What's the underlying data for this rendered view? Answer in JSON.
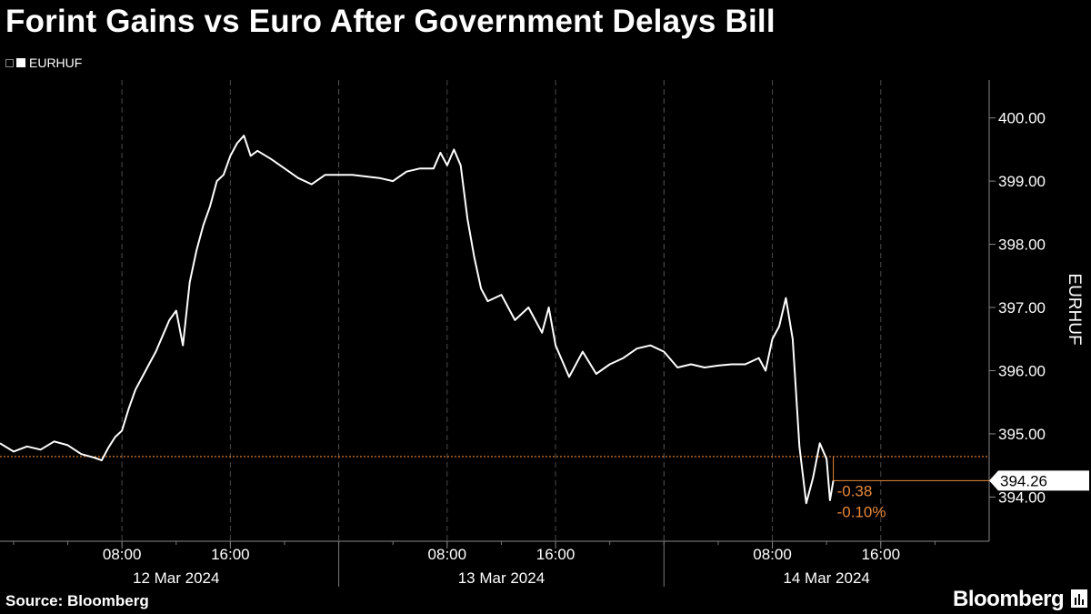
{
  "title": "Forint Gains vs Euro After Government Delays Bill",
  "legend": {
    "label": "EURHUF"
  },
  "source": "Source: Bloomberg",
  "brand": "Bloomberg",
  "colors": {
    "background": "#000000",
    "line": "#ffffff",
    "reference": "#e8893a",
    "grid": "#555555"
  },
  "chart_data": {
    "type": "line",
    "series": [
      {
        "name": "EURHUF",
        "points": [
          [
            "2024-03-11 23:00",
            394.85
          ],
          [
            "2024-03-12 00:00",
            394.72
          ],
          [
            "2024-03-12 01:00",
            394.8
          ],
          [
            "2024-03-12 02:00",
            394.75
          ],
          [
            "2024-03-12 03:00",
            394.88
          ],
          [
            "2024-03-12 04:00",
            394.82
          ],
          [
            "2024-03-12 05:00",
            394.68
          ],
          [
            "2024-03-12 06:00",
            394.62
          ],
          [
            "2024-03-12 06:30",
            394.58
          ],
          [
            "2024-03-12 07:00",
            394.78
          ],
          [
            "2024-03-12 07:30",
            394.95
          ],
          [
            "2024-03-12 08:00",
            395.05
          ],
          [
            "2024-03-12 08:30",
            395.4
          ],
          [
            "2024-03-12 09:00",
            395.7
          ],
          [
            "2024-03-12 09:30",
            395.9
          ],
          [
            "2024-03-12 10:00",
            396.1
          ],
          [
            "2024-03-12 10:30",
            396.3
          ],
          [
            "2024-03-12 11:00",
            396.55
          ],
          [
            "2024-03-12 11:30",
            396.8
          ],
          [
            "2024-03-12 12:00",
            396.95
          ],
          [
            "2024-03-12 12:30",
            396.4
          ],
          [
            "2024-03-12 13:00",
            397.4
          ],
          [
            "2024-03-12 13:30",
            397.9
          ],
          [
            "2024-03-12 14:00",
            398.3
          ],
          [
            "2024-03-12 14:30",
            398.6
          ],
          [
            "2024-03-12 15:00",
            399.0
          ],
          [
            "2024-03-12 15:30",
            399.1
          ],
          [
            "2024-03-12 16:00",
            399.4
          ],
          [
            "2024-03-12 16:30",
            399.6
          ],
          [
            "2024-03-12 17:00",
            399.72
          ],
          [
            "2024-03-12 17:30",
            399.4
          ],
          [
            "2024-03-12 18:00",
            399.48
          ],
          [
            "2024-03-12 19:00",
            399.35
          ],
          [
            "2024-03-12 20:00",
            399.2
          ],
          [
            "2024-03-12 21:00",
            399.05
          ],
          [
            "2024-03-12 22:00",
            398.95
          ],
          [
            "2024-03-12 23:00",
            399.1
          ],
          [
            "2024-03-13 01:00",
            399.1
          ],
          [
            "2024-03-13 03:00",
            399.05
          ],
          [
            "2024-03-13 04:00",
            399.0
          ],
          [
            "2024-03-13 05:00",
            399.15
          ],
          [
            "2024-03-13 06:00",
            399.2
          ],
          [
            "2024-03-13 07:00",
            399.2
          ],
          [
            "2024-03-13 07:30",
            399.45
          ],
          [
            "2024-03-13 08:00",
            399.25
          ],
          [
            "2024-03-13 08:30",
            399.5
          ],
          [
            "2024-03-13 09:00",
            399.25
          ],
          [
            "2024-03-13 09:30",
            398.4
          ],
          [
            "2024-03-13 10:00",
            397.8
          ],
          [
            "2024-03-13 10:30",
            397.3
          ],
          [
            "2024-03-13 11:00",
            397.1
          ],
          [
            "2024-03-13 12:00",
            397.2
          ],
          [
            "2024-03-13 13:00",
            396.8
          ],
          [
            "2024-03-13 14:00",
            397.0
          ],
          [
            "2024-03-13 15:00",
            396.6
          ],
          [
            "2024-03-13 15:30",
            397.0
          ],
          [
            "2024-03-13 16:00",
            396.4
          ],
          [
            "2024-03-13 17:00",
            395.9
          ],
          [
            "2024-03-13 18:00",
            396.3
          ],
          [
            "2024-03-13 19:00",
            395.95
          ],
          [
            "2024-03-13 20:00",
            396.1
          ],
          [
            "2024-03-13 21:00",
            396.2
          ],
          [
            "2024-03-13 22:00",
            396.35
          ],
          [
            "2024-03-13 23:00",
            396.4
          ],
          [
            "2024-03-14 00:00",
            396.3
          ],
          [
            "2024-03-14 01:00",
            396.05
          ],
          [
            "2024-03-14 02:00",
            396.1
          ],
          [
            "2024-03-14 03:00",
            396.05
          ],
          [
            "2024-03-14 04:00",
            396.08
          ],
          [
            "2024-03-14 05:00",
            396.1
          ],
          [
            "2024-03-14 06:00",
            396.1
          ],
          [
            "2024-03-14 07:00",
            396.2
          ],
          [
            "2024-03-14 07:30",
            396.0
          ],
          [
            "2024-03-14 08:00",
            396.5
          ],
          [
            "2024-03-14 08:30",
            396.7
          ],
          [
            "2024-03-14 09:00",
            397.15
          ],
          [
            "2024-03-14 09:30",
            396.5
          ],
          [
            "2024-03-14 10:00",
            394.8
          ],
          [
            "2024-03-14 10:30",
            393.9
          ],
          [
            "2024-03-14 11:00",
            394.3
          ],
          [
            "2024-03-14 11:30",
            394.85
          ],
          [
            "2024-03-14 12:00",
            394.6
          ],
          [
            "2024-03-14 12:15",
            393.95
          ],
          [
            "2024-03-14 12:30",
            394.26
          ]
        ]
      }
    ],
    "reference_line": 394.64,
    "last_value": "394.26",
    "change_abs": "-0.38",
    "change_pct": "-0.10%",
    "ylim": [
      393.3,
      400.6
    ],
    "yticks": [
      394,
      395,
      396,
      397,
      398,
      399,
      400
    ],
    "ytick_labels": [
      "394.00",
      "395.00",
      "396.00",
      "397.00",
      "398.00",
      "399.00",
      "400.00"
    ],
    "xlim": [
      "2024-03-11 23:00",
      "2024-03-15 00:00"
    ],
    "xticks": [
      {
        "t": "2024-03-12 08:00",
        "label": "08:00"
      },
      {
        "t": "2024-03-12 16:00",
        "label": "16:00"
      },
      {
        "t": "2024-03-13 08:00",
        "label": "08:00"
      },
      {
        "t": "2024-03-13 16:00",
        "label": "16:00"
      },
      {
        "t": "2024-03-14 08:00",
        "label": "08:00"
      },
      {
        "t": "2024-03-14 16:00",
        "label": "16:00"
      }
    ],
    "day_labels": [
      {
        "t": "2024-03-12 12:00",
        "label": "12 Mar 2024"
      },
      {
        "t": "2024-03-13 12:00",
        "label": "13 Mar 2024"
      },
      {
        "t": "2024-03-14 12:00",
        "label": "14 Mar 2024"
      }
    ],
    "day_separators": [
      "2024-03-13 00:00",
      "2024-03-14 00:00"
    ],
    "ylabel": "EURHUF",
    "grid": true,
    "legend_position": "top-left"
  }
}
